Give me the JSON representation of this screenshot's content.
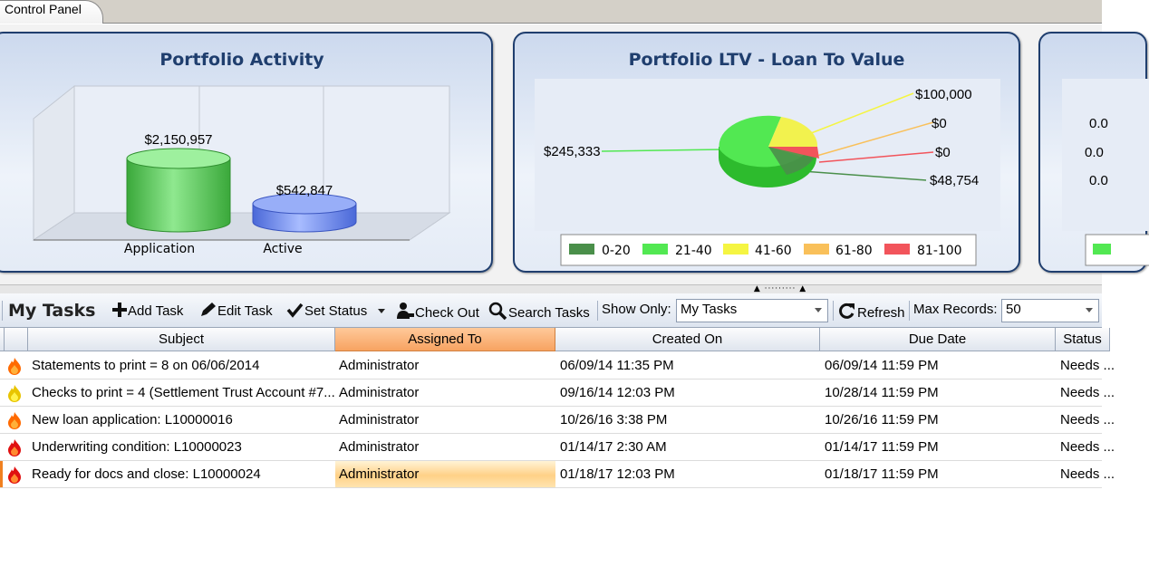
{
  "tab": {
    "label": "Control Panel"
  },
  "activity_chart": {
    "title": "Portfolio Activity",
    "categories": [
      "Application",
      "Active"
    ],
    "value_labels": [
      "$2,150,957",
      "$542,847"
    ],
    "colors": [
      "#5fd35f",
      "#6f8ff0"
    ]
  },
  "ltv_chart": {
    "title": "Portfolio LTV - Loan To Value",
    "slice_labels": [
      "$245,333",
      "$100,000",
      "$0",
      "$0",
      "$48,754"
    ],
    "legend": [
      "0-20",
      "21-40",
      "41-60",
      "61-80",
      "81-100"
    ],
    "legend_colors": [
      "#4a8f4a",
      "#52e852",
      "#f5f542",
      "#f9c05a",
      "#f2545b"
    ]
  },
  "third_chart": {
    "labels": [
      "0.0",
      "0.0",
      "0.0"
    ]
  },
  "chart_data": [
    {
      "type": "bar",
      "title": "Portfolio Activity",
      "categories": [
        "Application",
        "Active"
      ],
      "values": [
        2150957,
        542847
      ],
      "value_labels": [
        "$2,150,957",
        "$542,847"
      ]
    },
    {
      "type": "pie",
      "title": "Portfolio LTV - Loan To Value",
      "categories": [
        "0-20",
        "21-40",
        "41-60",
        "61-80",
        "81-100"
      ],
      "values": [
        48754,
        245333,
        100000,
        0,
        0
      ],
      "legend": "bottom"
    }
  ],
  "toolbar": {
    "section_title": "My Tasks",
    "add_task": "Add Task",
    "edit_task": "Edit Task",
    "set_status": "Set Status",
    "check_out": "Check Out",
    "search_tasks": "Search Tasks",
    "show_only_label": "Show Only:",
    "show_only_value": "My Tasks",
    "refresh": "Refresh",
    "max_records_label": "Max Records:",
    "max_records_value": "50"
  },
  "grid": {
    "columns": [
      "Subject",
      "Assigned To",
      "Created On",
      "Due Date",
      "Status"
    ],
    "rows": [
      {
        "icon": "flame-orange-icon",
        "subject": "Statements to print = 8 on 06/06/2014",
        "assigned": "Administrator",
        "created": "06/09/14 11:35 PM",
        "due": "06/09/14 11:59 PM",
        "status": "Needs ..."
      },
      {
        "icon": "flame-yellow-icon",
        "subject": "Checks to print = 4 (Settlement Trust Account #7...",
        "assigned": "Administrator",
        "created": "09/16/14 12:03 PM",
        "due": "10/28/14 11:59 PM",
        "status": "Needs ..."
      },
      {
        "icon": "flame-orange-icon",
        "subject": "New loan application: L10000016",
        "assigned": "Administrator",
        "created": "10/26/16 3:38 PM",
        "due": "10/26/16 11:59 PM",
        "status": "Needs ..."
      },
      {
        "icon": "flame-red-icon",
        "subject": "Underwriting condition: L10000023",
        "assigned": "Administrator",
        "created": "01/14/17 2:30 AM",
        "due": "01/14/17 11:59 PM",
        "status": "Needs ..."
      },
      {
        "icon": "flame-red-icon",
        "subject": "Ready for docs and close: L10000024",
        "assigned": "Administrator",
        "created": "01/18/17 12:03 PM",
        "due": "01/18/17 11:59 PM",
        "status": "Needs ..."
      }
    ]
  }
}
